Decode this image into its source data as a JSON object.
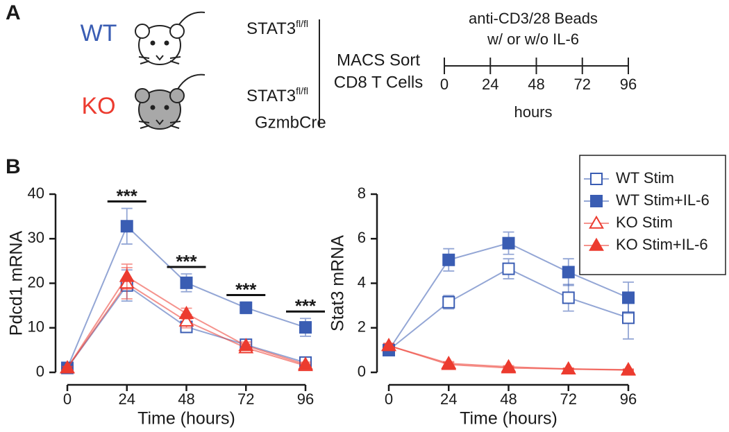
{
  "panel_labels": [
    "A",
    "B"
  ],
  "design": {
    "wt_label": "WT",
    "ko_label": "KO",
    "wt_genotype": {
      "gene": "STAT3",
      "superscript": "fl/fl"
    },
    "ko_genotype": {
      "gene": "STAT3",
      "superscript": "fl/fl",
      "line2": "GzmbCre"
    },
    "sort_lines": [
      "MACS Sort",
      "CD8 T Cells"
    ],
    "stim_lines": [
      "anti-CD3/28 Beads",
      "w/ or w/o IL-6"
    ],
    "timeline": {
      "xlim": [
        0,
        96
      ],
      "ticks": [
        0,
        24,
        48,
        72,
        96
      ],
      "unit": "hours"
    }
  },
  "chart_data": [
    {
      "type": "line",
      "xlabel": "Time (hours)",
      "ylabel": "Pdcd1 mRNA",
      "x": [
        0,
        24,
        48,
        72,
        96
      ],
      "xlim": [
        0,
        96
      ],
      "xticks": [
        0,
        24,
        48,
        72,
        96
      ],
      "ylim": [
        0,
        40
      ],
      "yticks": [
        0,
        10,
        20,
        30,
        40
      ],
      "legend": false,
      "series": [
        {
          "name": "WT Stim",
          "color": "#3a5db3",
          "marker": "square",
          "filled": false,
          "values": [
            1,
            19.5,
            10.2,
            6.2,
            2.2
          ],
          "errors": [
            0.3,
            3.5,
            1.2,
            0.8,
            0.5
          ]
        },
        {
          "name": "WT Stim+IL-6",
          "color": "#3a5db3",
          "marker": "square",
          "filled": true,
          "values": [
            1,
            32.8,
            20.1,
            14.5,
            10.1
          ],
          "errors": [
            0.3,
            4,
            2,
            1.3,
            2
          ]
        },
        {
          "name": "KO Stim",
          "color": "#ec3b2f",
          "marker": "triangle",
          "filled": false,
          "values": [
            1,
            20,
            11.5,
            5.5,
            1.5
          ],
          "errors": [
            0.3,
            3.5,
            1.5,
            0.8,
            0.4
          ]
        },
        {
          "name": "KO Stim+IL-6",
          "color": "#ec3b2f",
          "marker": "triangle",
          "filled": true,
          "values": [
            1,
            21.5,
            13.2,
            6,
            1.8
          ],
          "errors": [
            0.3,
            2.8,
            1.2,
            0.8,
            0.5
          ]
        }
      ],
      "significance": [
        {
          "x": 24,
          "label": "***"
        },
        {
          "x": 48,
          "label": "***"
        },
        {
          "x": 72,
          "label": "***"
        },
        {
          "x": 96,
          "label": "***"
        }
      ]
    },
    {
      "type": "line",
      "xlabel": "Time (hours)",
      "ylabel": "Stat3 mRNA",
      "x": [
        0,
        24,
        48,
        72,
        96
      ],
      "xlim": [
        0,
        96
      ],
      "xticks": [
        0,
        24,
        48,
        72,
        96
      ],
      "ylim": [
        0,
        8
      ],
      "yticks": [
        0,
        2,
        4,
        6,
        8
      ],
      "legend": "upper right",
      "series": [
        {
          "name": "WT Stim",
          "color": "#3a5db3",
          "marker": "square",
          "filled": false,
          "values": [
            1,
            3.15,
            4.65,
            3.35,
            2.45
          ],
          "errors": [
            0.2,
            0.3,
            0.45,
            0.6,
            0.95
          ]
        },
        {
          "name": "WT Stim+IL-6",
          "color": "#3a5db3",
          "marker": "square",
          "filled": true,
          "values": [
            1,
            5.05,
            5.8,
            4.5,
            3.35
          ],
          "errors": [
            0.2,
            0.5,
            0.5,
            0.6,
            0.7
          ]
        },
        {
          "name": "KO Stim",
          "color": "#ec3b2f",
          "marker": "triangle",
          "filled": false,
          "values": [
            1.2,
            0.35,
            0.2,
            0.15,
            0.1
          ],
          "errors": [
            0.1,
            0.08,
            0.05,
            0.04,
            0.03
          ]
        },
        {
          "name": "KO Stim+IL-6",
          "color": "#ec3b2f",
          "marker": "triangle",
          "filled": true,
          "values": [
            1.2,
            0.4,
            0.25,
            0.15,
            0.12
          ],
          "errors": [
            0.1,
            0.08,
            0.05,
            0.04,
            0.03
          ]
        }
      ]
    }
  ]
}
